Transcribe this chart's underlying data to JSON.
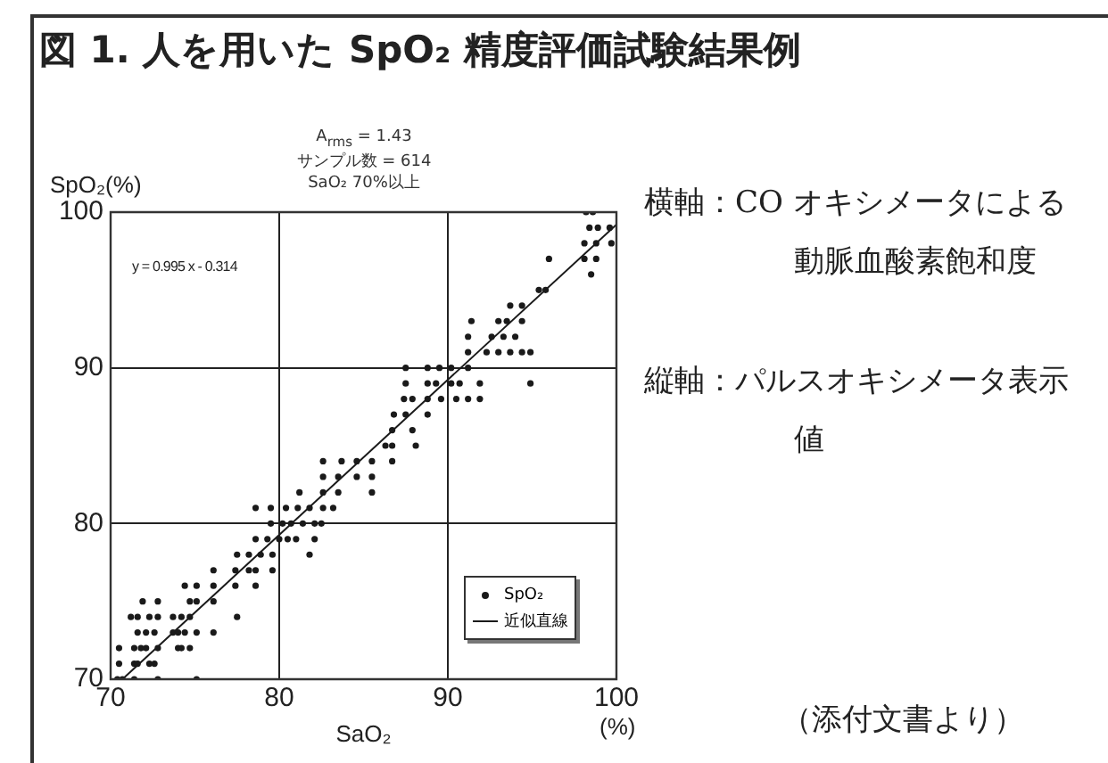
{
  "chart_data": {
    "type": "scatter",
    "title": "図 1. 人を用いた SpO₂ 精度評価試験結果例",
    "xlabel": "SaO₂",
    "ylabel": "SpO₂(%)",
    "xlim": [
      70,
      100
    ],
    "ylim": [
      70,
      100
    ],
    "xticks": [
      70,
      80,
      90,
      100
    ],
    "yticks": [
      70,
      80,
      90,
      100
    ],
    "grid": true,
    "legend": "bottom right",
    "annotations": [
      "A$_{rms}$ = 1.43",
      "サンプル数 = 614",
      "SaO₂ 70%以上",
      "y = 0.995 x - 0.314",
      "横軸：CO オキシメータによる動脈血酸素飽和度",
      "縦軸：パルスオキシメータ表示値",
      "（添付文書より）",
      "(%)"
    ],
    "series": [
      {
        "name": "SpO₂",
        "marker": "circle",
        "color": "#1a1a1a",
        "x": [
          70.4,
          70.7,
          71.4,
          72.8,
          75.1,
          70.5,
          71.4,
          71.6,
          72.3,
          72.6,
          70.5,
          71.4,
          71.8,
          72.1,
          72.8,
          74.0,
          74.2,
          74.7,
          71.6,
          72.1,
          72.6,
          73.7,
          74.0,
          74.4,
          75.1,
          76.1,
          71.2,
          71.6,
          72.3,
          72.8,
          73.7,
          74.2,
          74.7,
          77.5,
          71.9,
          72.8,
          74.7,
          75.1,
          76.1,
          74.4,
          75.1,
          76.1,
          77.4,
          78.6,
          76.1,
          77.4,
          78.2,
          78.6,
          79.6,
          77.5,
          78.2,
          78.9,
          79.6,
          81.8,
          78.6,
          79.3,
          80.0,
          80.5,
          81.0,
          82.1,
          79.5,
          80.2,
          80.7,
          81.4,
          82.1,
          82.5,
          78.6,
          79.5,
          80.4,
          81.1,
          81.8,
          82.6,
          83.2,
          81.2,
          82.6,
          83.5,
          85.5,
          82.6,
          83.5,
          84.6,
          85.5,
          82.6,
          83.7,
          84.6,
          85.5,
          86.7,
          86.3,
          86.7,
          88.1,
          86.7,
          87.9,
          86.8,
          87.5,
          88.8,
          87.4,
          87.9,
          88.8,
          89.6,
          90.5,
          91.2,
          91.9,
          87.5,
          88.8,
          89.3,
          90.2,
          90.7,
          91.9,
          94.9,
          87.5,
          88.8,
          89.5,
          90.2,
          91.2,
          91.2,
          92.3,
          93.0,
          93.7,
          94.4,
          94.9,
          91.2,
          92.6,
          93.3,
          94.0,
          91.4,
          93.0,
          93.5,
          94.4,
          93.7,
          94.4,
          95.4,
          95.8,
          98.5,
          96.0,
          98.1,
          98.8,
          98.1,
          98.8,
          99.7,
          98.4,
          98.9,
          99.6,
          98.2,
          98.6
        ],
        "values": [
          70,
          70,
          70,
          70,
          70,
          71,
          71,
          71,
          71,
          71,
          72,
          72,
          72,
          72,
          72,
          72,
          72,
          72,
          73,
          73,
          73,
          73,
          73,
          73,
          73,
          73,
          74,
          74,
          74,
          74,
          74,
          74,
          74,
          74,
          75,
          75,
          75,
          75,
          75,
          76,
          76,
          76,
          76,
          76,
          77,
          77,
          77,
          77,
          77,
          78,
          78,
          78,
          78,
          78,
          79,
          79,
          79,
          79,
          79,
          79,
          80,
          80,
          80,
          80,
          80,
          80,
          81,
          81,
          81,
          81,
          81,
          81,
          81,
          82,
          82,
          82,
          82,
          83,
          83,
          83,
          83,
          84,
          84,
          84,
          84,
          84,
          85,
          85,
          85,
          86,
          86,
          87,
          87,
          87,
          88,
          88,
          88,
          88,
          88,
          88,
          88,
          89,
          89,
          89,
          89,
          89,
          89,
          89,
          90,
          90,
          90,
          90,
          90,
          91,
          91,
          91,
          91,
          91,
          91,
          92,
          92,
          92,
          92,
          93,
          93,
          93,
          93,
          94,
          94,
          95,
          95,
          96,
          97,
          97,
          97,
          98,
          98,
          98,
          99,
          99,
          99,
          100,
          100
        ]
      },
      {
        "name": "近似直線",
        "type": "line",
        "color": "#1a1a1a",
        "x": [
          70.8,
          100
        ],
        "values": [
          70.1,
          99.2
        ]
      }
    ]
  }
}
